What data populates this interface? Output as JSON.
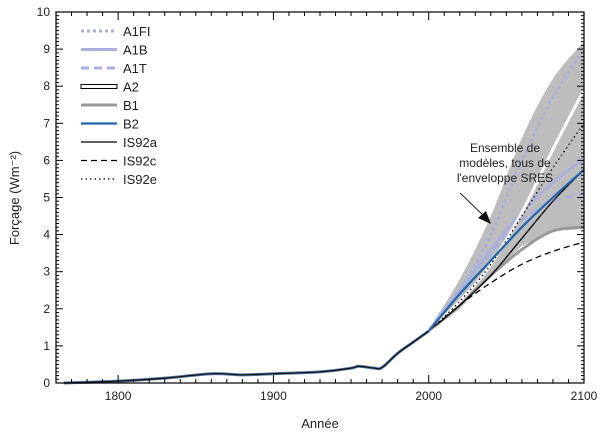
{
  "chart_data": {
    "type": "line",
    "title": "",
    "xlabel": "Année",
    "ylabel": "Forçage (Wm⁻²)",
    "xlim": [
      1760,
      2100
    ],
    "ylim": [
      0,
      10
    ],
    "xticks": [
      1800,
      1900,
      2000,
      2100
    ],
    "yticks": [
      0,
      1,
      2,
      3,
      4,
      5,
      6,
      7,
      8,
      9,
      10
    ],
    "legend_position": "top-left",
    "annotation": [
      "Ensemble de",
      "modèles, tous de",
      "l'enveloppe SRES"
    ],
    "historical": {
      "x": [
        1765,
        1800,
        1830,
        1860,
        1880,
        1900,
        1930,
        1950,
        1955,
        1965,
        1970,
        1980,
        1990,
        2000
      ],
      "y": [
        0,
        0.05,
        0.13,
        0.25,
        0.22,
        0.25,
        0.3,
        0.4,
        0.45,
        0.4,
        0.42,
        0.8,
        1.1,
        1.4
      ]
    },
    "envelope": {
      "x": [
        2000,
        2020,
        2040,
        2060,
        2080,
        2100
      ],
      "upper": [
        1.45,
        2.8,
        4.5,
        6.6,
        8.2,
        9.2
      ],
      "lower": [
        1.35,
        2.0,
        2.9,
        3.7,
        4.1,
        4.15
      ]
    },
    "series": [
      {
        "name": "A1FI",
        "color": "#aab0dd",
        "style": "dotted",
        "x": [
          2000,
          2020,
          2040,
          2060,
          2080,
          2100
        ],
        "y": [
          1.4,
          2.5,
          4.0,
          6.0,
          7.7,
          9.0
        ]
      },
      {
        "name": "A1B",
        "color": "#aab0dd",
        "style": "solid",
        "x": [
          2000,
          2020,
          2040,
          2060,
          2080,
          2100
        ],
        "y": [
          1.4,
          2.5,
          3.6,
          4.6,
          5.4,
          6.05
        ]
      },
      {
        "name": "A1T",
        "color": "#aab0dd",
        "style": "dashed",
        "x": [
          2000,
          2020,
          2040,
          2060,
          2080,
          2100
        ],
        "y": [
          1.4,
          2.5,
          3.5,
          4.4,
          4.9,
          5.1
        ]
      },
      {
        "name": "A2",
        "color": "#ffffff",
        "style": "outlined",
        "x": [
          2000,
          2020,
          2040,
          2060,
          2080,
          2100
        ],
        "y": [
          1.4,
          2.2,
          3.2,
          4.6,
          6.3,
          7.9
        ]
      },
      {
        "name": "B1",
        "color": "#999999",
        "style": "solid",
        "x": [
          2000,
          2020,
          2040,
          2060,
          2080,
          2100
        ],
        "y": [
          1.4,
          2.1,
          2.9,
          3.6,
          4.1,
          4.2
        ]
      },
      {
        "name": "B2",
        "color": "#1f64b0",
        "style": "solid",
        "x": [
          2000,
          2020,
          2040,
          2060,
          2080,
          2100
        ],
        "y": [
          1.4,
          2.4,
          3.3,
          4.2,
          5.0,
          5.75
        ]
      },
      {
        "name": "IS92a",
        "color": "#000000",
        "style": "solid",
        "x": [
          2000,
          2020,
          2040,
          2060,
          2080,
          2100
        ],
        "y": [
          1.4,
          2.1,
          2.9,
          3.9,
          4.9,
          5.75
        ]
      },
      {
        "name": "IS92c",
        "color": "#000000",
        "style": "dashed",
        "x": [
          2000,
          2020,
          2040,
          2060,
          2080,
          2100
        ],
        "y": [
          1.4,
          2.1,
          2.7,
          3.2,
          3.55,
          3.8
        ]
      },
      {
        "name": "IS92e",
        "color": "#000000",
        "style": "dotted",
        "x": [
          2000,
          2020,
          2040,
          2060,
          2080,
          2100
        ],
        "y": [
          1.4,
          2.2,
          3.2,
          4.5,
          5.8,
          7.0
        ]
      }
    ]
  }
}
